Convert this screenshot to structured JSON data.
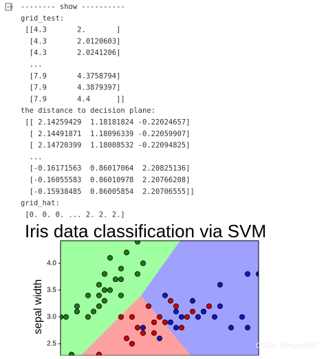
{
  "output": {
    "lines": [
      "-------- show ----------",
      "grid_test:",
      " [[4.3       2.       ]",
      "  [4.3       2.0120603]",
      "  [4.3       2.0241206]",
      "  ...",
      "  [7.9       4.3758794]",
      "  [7.9       4.3879397]",
      "  [7.9       4.4      ]]",
      "the distance to decision plane:",
      " [[ 2.14259429  1.18181824 -0.22024657]",
      "  [ 2.14491871  1.18096339 -0.22059907]",
      "  [ 2.14720399  1.18008532 -0.22094825]",
      "  ...",
      "  [-0.16171563  0.86017064  2.20825136]",
      "  [-0.16055583  0.86010978  2.20766208]",
      "  [-0.15938485  0.86005854  2.20706555]]",
      "grid_hat:",
      " [0. 0. 0. ... 2. 2. 2.]"
    ]
  },
  "chart_data": {
    "type": "scatter",
    "title": "Iris data classification via SVM",
    "y_label": "sepal width",
    "xlim": [
      4.3,
      7.9
    ],
    "ylim": [
      2.28,
      4.42
    ],
    "yticks": [
      2.5,
      {
        "value": 3,
        "label": "3.0"
      },
      3.5,
      {
        "value": 4,
        "label": "4.0"
      }
    ],
    "series": [
      {
        "color": "#1f7a1f",
        "x": [
          4.3,
          4.4,
          4.6,
          4.8,
          4.9,
          5.0,
          5.1,
          5.4,
          5.4,
          5.7,
          5.2,
          5.5,
          5.0,
          5.1,
          4.6,
          5.7,
          5.8,
          5.4,
          5.1,
          4.8,
          5.3,
          4.5,
          5.0,
          5.2
        ],
        "values": [
          3.0,
          3.0,
          3.1,
          3.0,
          3.1,
          3.4,
          3.5,
          3.9,
          3.7,
          4.4,
          4.1,
          4.2,
          3.6,
          3.8,
          3.2,
          3.8,
          4.0,
          3.4,
          3.3,
          3.4,
          3.7,
          2.3,
          3.2,
          3.5
        ]
      },
      {
        "color": "#d40000",
        "x": [
          5.6,
          5.7,
          6.0,
          6.1,
          6.4,
          6.9,
          6.7,
          5.9,
          6.3,
          7.0,
          5.6,
          5.5,
          6.6,
          6.2,
          5.8,
          6.5,
          5.0,
          6.0,
          5.4
        ],
        "values": [
          2.5,
          2.8,
          2.9,
          3.0,
          3.2,
          3.1,
          3.1,
          3.2,
          3.3,
          3.2,
          3.0,
          2.6,
          3.0,
          2.9,
          2.7,
          2.8,
          2.3,
          2.7,
          3.0
        ]
      },
      {
        "color": "#1414c8",
        "x": [
          7.9,
          7.7,
          7.2,
          7.2,
          6.4,
          6.5,
          6.3,
          6.8,
          7.1,
          6.9,
          7.6,
          7.7,
          5.8,
          6.2,
          6.4,
          6.7,
          6.1,
          7.4
        ],
        "values": [
          3.8,
          3.8,
          3.6,
          3.2,
          2.8,
          3.0,
          2.9,
          3.0,
          3.0,
          3.1,
          3.0,
          2.8,
          2.8,
          3.4,
          3.1,
          3.3,
          2.6,
          2.8
        ]
      }
    ]
  },
  "watermark": "CSDN @myou987"
}
